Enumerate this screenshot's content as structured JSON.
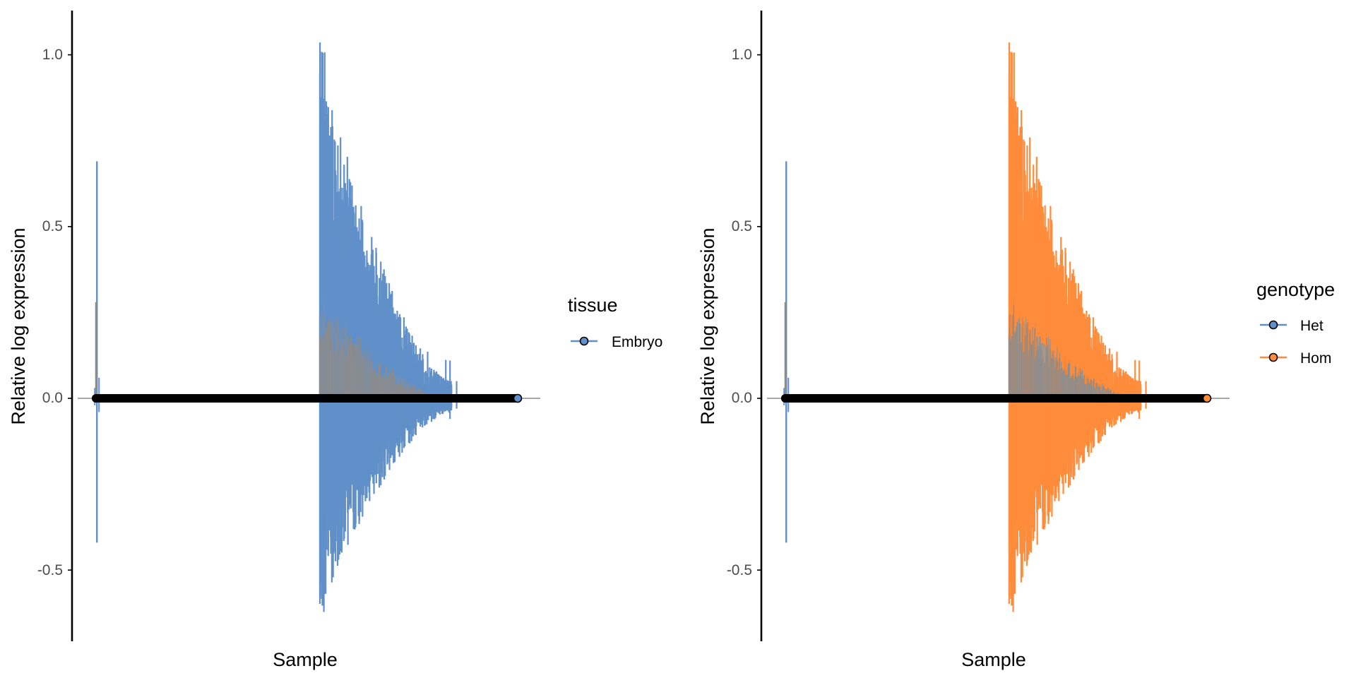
{
  "chart_data": [
    {
      "type": "line",
      "xlabel": "Sample",
      "ylabel": "Relative log expression",
      "ylim": [
        -0.68,
        1.05
      ],
      "yticks": [
        -0.5,
        0.0,
        0.5,
        1.0
      ],
      "ytick_labels": [
        "-0.5",
        "0.0",
        "0.5",
        "1.0"
      ],
      "reference_line": 0.0,
      "legend": {
        "title": "tissue",
        "placement": "right",
        "entries": [
          "Embryo"
        ]
      },
      "series": [
        {
          "name": "Embryo",
          "color": "#6190C9",
          "samples": [
            {
              "x": 0.012,
              "low": -0.42,
              "high": 0.69
            },
            {
              "x": 0.535,
              "low": -0.63,
              "high": 1.05,
              "segment_count": 300,
              "span": 0.31
            }
          ]
        }
      ],
      "box_color": "#8C8C8C",
      "median_color": "#000000"
    },
    {
      "type": "line",
      "xlabel": "Sample",
      "ylabel": "Relative log expression",
      "ylim": [
        -0.68,
        1.05
      ],
      "yticks": [
        -0.5,
        0.0,
        0.5,
        1.0
      ],
      "ytick_labels": [
        "-0.5",
        "0.0",
        "0.5",
        "1.0"
      ],
      "reference_line": 0.0,
      "legend": {
        "title": "genotype",
        "placement": "right",
        "entries": [
          "Het",
          "Hom"
        ]
      },
      "series": [
        {
          "name": "Het",
          "color": "#6190C9"
        },
        {
          "name": "Hom",
          "color": "#FF8C3B"
        }
      ],
      "box_color": "#8C8C8C",
      "median_color": "#000000"
    }
  ]
}
